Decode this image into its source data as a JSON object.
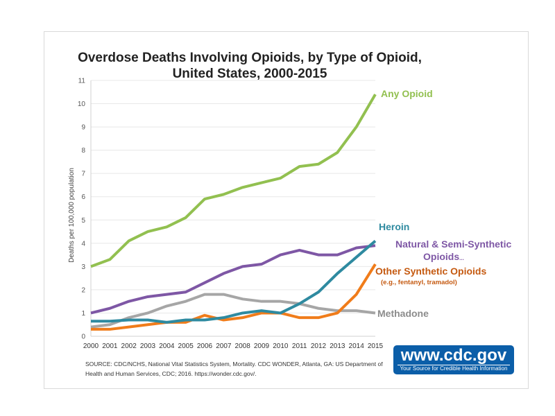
{
  "chart_data": {
    "type": "line",
    "title": [
      "Overdose Deaths Involving Opioids, by Type of Opioid,",
      "United States, 2000-2015"
    ],
    "xlabel": "",
    "ylabel": "Deaths per 100,000 population",
    "ylim": [
      0,
      11
    ],
    "yticks": [
      "0",
      "1",
      "2",
      "3",
      "4",
      "5",
      "6",
      "7",
      "8",
      "9",
      "10",
      "11"
    ],
    "x": [
      "2000",
      "2001",
      "2002",
      "2003",
      "2004",
      "2005",
      "2006",
      "2007",
      "2008",
      "2009",
      "2010",
      "2011",
      "2012",
      "2013",
      "2014",
      "2015"
    ],
    "grid": true,
    "series": [
      {
        "name": "Any Opioid",
        "color": "#92c050",
        "labelColor": "#92c050",
        "values": [
          3.0,
          3.3,
          4.1,
          4.5,
          4.7,
          5.1,
          5.9,
          6.1,
          6.4,
          6.6,
          6.8,
          7.3,
          7.4,
          7.9,
          9.0,
          10.4
        ]
      },
      {
        "name": "Natural & Semi-Synthetic Opioids...",
        "color": "#7e57a5",
        "labelColor": "#7e57a5",
        "values": [
          1.0,
          1.2,
          1.5,
          1.7,
          1.8,
          1.9,
          2.3,
          2.7,
          3.0,
          3.1,
          3.5,
          3.7,
          3.5,
          3.5,
          3.8,
          3.9
        ]
      },
      {
        "name": "Methadone",
        "color": "#a6a6a6",
        "labelColor": "#8c8c8c",
        "values": [
          0.4,
          0.5,
          0.8,
          1.0,
          1.3,
          1.5,
          1.8,
          1.8,
          1.6,
          1.5,
          1.5,
          1.4,
          1.2,
          1.1,
          1.1,
          1.0
        ]
      },
      {
        "name": "Other Synthetic Opioids",
        "color": "#f07c1a",
        "labelColor": "#c55a11",
        "values": [
          0.3,
          0.3,
          0.4,
          0.5,
          0.6,
          0.6,
          0.9,
          0.7,
          0.8,
          1.0,
          1.0,
          0.8,
          0.8,
          1.0,
          1.8,
          3.1
        ]
      },
      {
        "name": "Heroin",
        "color": "#2e8aa0",
        "labelColor": "#2e8aa0",
        "values": [
          0.65,
          0.65,
          0.7,
          0.7,
          0.6,
          0.7,
          0.7,
          0.8,
          1.0,
          1.1,
          1.0,
          1.4,
          1.9,
          2.7,
          3.4,
          4.1
        ]
      }
    ]
  },
  "labels": {
    "any": "Any Opioid",
    "heroin": "Heroin",
    "natural1": "Natural & Semi-Synthetic",
    "natural2": "Opioids",
    "natural_mark": "...",
    "other1": "Other Synthetic Opioids",
    "other2": "(e.g., fentanyl, tramadol)",
    "methadone": "Methadone"
  },
  "source": "SOURCE: CDC/NCHS, National Vital Statistics System, Mortality. CDC WONDER, Atlanta, GA: US Department of Health and Human Services, CDC; 2016. https://wonder.cdc.gov/.",
  "logo": {
    "url": "www.cdc.gov",
    "tagline": "Your Source for Credible Health Information"
  }
}
